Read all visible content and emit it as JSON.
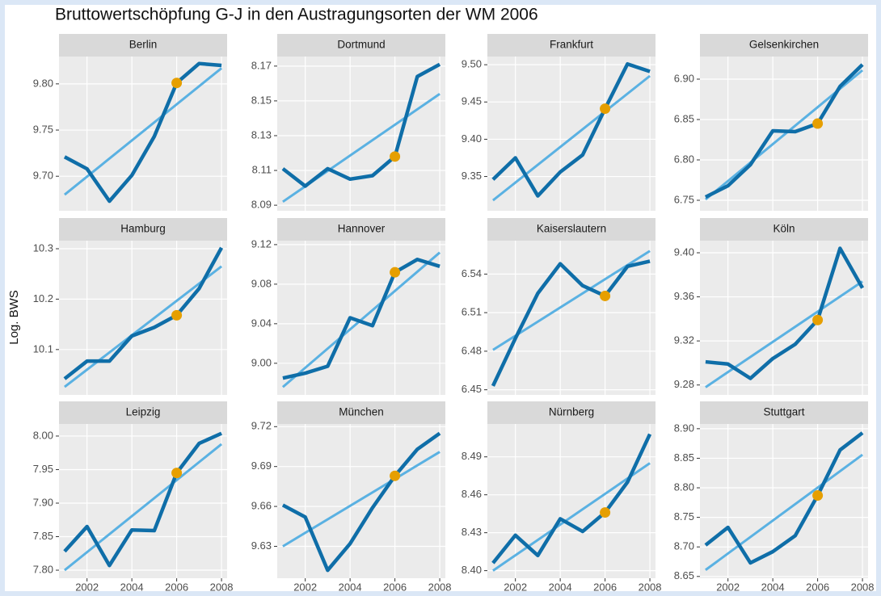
{
  "title": "Bruttowertschöpfung G-J in den Austragungsorten der WM 2006",
  "y_label": "Log. BWS",
  "chart_data": [
    {
      "type": "line",
      "title": "Berlin",
      "x": [
        2001,
        2002,
        2003,
        2004,
        2005,
        2006,
        2007,
        2008
      ],
      "xlim": [
        2000.75,
        2008.25
      ],
      "xticks": [
        2002,
        2004,
        2006,
        2008
      ],
      "ylim": [
        9.6626,
        9.8296
      ],
      "yticks": [
        {
          "value": 9.8,
          "label": "9.80"
        },
        9.75,
        {
          "value": 9.7,
          "label": "9.70"
        }
      ],
      "grid": true,
      "series": [
        {
          "color": "#0f6ea8",
          "values": [
            9.721,
            9.708,
            9.673,
            9.701,
            9.743,
            9.801,
            9.822,
            9.82
          ]
        },
        {
          "color": "#5ab1e2",
          "x": [
            2001,
            2008
          ],
          "values": [
            9.68,
            9.817
          ]
        }
      ],
      "points": {
        "color": "#e69f00",
        "x": [
          2006
        ],
        "values": [
          9.801
        ]
      }
    },
    {
      "type": "line",
      "title": "Dortmund",
      "x": [
        2001,
        2002,
        2003,
        2004,
        2005,
        2006,
        2007,
        2008
      ],
      "xlim": [
        2000.75,
        2008.25
      ],
      "xticks": [
        2002,
        2004,
        2006,
        2008
      ],
      "ylim": [
        8.0868,
        8.1755
      ],
      "yticks": [
        8.17,
        8.15,
        8.13,
        8.11,
        8.09
      ],
      "grid": true,
      "series": [
        {
          "color": "#0f6ea8",
          "values": [
            8.111,
            8.101,
            8.111,
            8.105,
            8.107,
            8.118,
            8.164,
            8.171
          ]
        },
        {
          "color": "#5ab1e2",
          "x": [
            2001,
            2008
          ],
          "values": [
            8.092,
            8.154
          ]
        }
      ],
      "points": {
        "color": "#e69f00",
        "x": [
          2006
        ],
        "values": [
          8.118
        ]
      }
    },
    {
      "type": "line",
      "title": "Frankfurt",
      "x": [
        2001,
        2002,
        2003,
        2004,
        2005,
        2006,
        2007,
        2008
      ],
      "xlim": [
        2000.75,
        2008.25
      ],
      "xticks": [
        2002,
        2004,
        2006,
        2008
      ],
      "ylim": [
        9.304,
        9.511
      ],
      "yticks": [
        {
          "value": 9.5,
          "label": "9.50"
        },
        9.45,
        {
          "value": 9.4,
          "label": "9.40"
        },
        9.35
      ],
      "grid": true,
      "series": [
        {
          "color": "#0f6ea8",
          "values": [
            9.346,
            9.375,
            9.324,
            9.356,
            9.379,
            9.441,
            9.501,
            9.491
          ]
        },
        {
          "color": "#5ab1e2",
          "x": [
            2001,
            2008
          ],
          "values": [
            9.318,
            9.485
          ]
        }
      ],
      "points": {
        "color": "#e69f00",
        "x": [
          2006
        ],
        "values": [
          9.441
        ]
      }
    },
    {
      "type": "line",
      "title": "Gelsenkirchen",
      "x": [
        2001,
        2002,
        2003,
        2004,
        2005,
        2006,
        2007,
        2008
      ],
      "xlim": [
        2000.75,
        2008.25
      ],
      "xticks": [
        2002,
        2004,
        2006,
        2008
      ],
      "ylim": [
        6.737,
        6.928
      ],
      "yticks": [
        {
          "value": 6.9,
          "label": "6.90"
        },
        6.85,
        {
          "value": 6.8,
          "label": "6.80"
        },
        6.75
      ],
      "grid": true,
      "series": [
        {
          "color": "#0f6ea8",
          "values": [
            6.754,
            6.768,
            6.794,
            6.836,
            6.835,
            6.845,
            6.891,
            6.918
          ]
        },
        {
          "color": "#5ab1e2",
          "x": [
            2001,
            2008
          ],
          "values": [
            6.751,
            6.911
          ]
        }
      ],
      "points": {
        "color": "#e69f00",
        "x": [
          2006
        ],
        "values": [
          6.845
        ]
      }
    },
    {
      "type": "line",
      "title": "Hamburg",
      "x": [
        2001,
        2002,
        2003,
        2004,
        2005,
        2006,
        2007,
        2008
      ],
      "xlim": [
        2000.75,
        2008.25
      ],
      "xticks": [
        2002,
        2004,
        2006,
        2008
      ],
      "ylim": [
        10.01,
        10.316
      ],
      "yticks": [
        10.3,
        10.2,
        10.1
      ],
      "grid": true,
      "series": [
        {
          "color": "#0f6ea8",
          "values": [
            10.042,
            10.077,
            10.077,
            10.127,
            10.144,
            10.168,
            10.221,
            10.302
          ]
        },
        {
          "color": "#5ab1e2",
          "x": [
            2001,
            2008
          ],
          "values": [
            10.026,
            10.265
          ]
        }
      ],
      "points": {
        "color": "#e69f00",
        "x": [
          2006
        ],
        "values": [
          10.168
        ]
      }
    },
    {
      "type": "line",
      "title": "Hannover",
      "x": [
        2001,
        2002,
        2003,
        2004,
        2005,
        2006,
        2007,
        2008
      ],
      "xlim": [
        2000.75,
        2008.25
      ],
      "xticks": [
        2002,
        2004,
        2006,
        2008
      ],
      "ylim": [
        8.968,
        9.124
      ],
      "yticks": [
        9.12,
        9.08,
        9.04,
        {
          "value": 9.0,
          "label": "9.00"
        }
      ],
      "grid": true,
      "series": [
        {
          "color": "#0f6ea8",
          "values": [
            8.985,
            8.99,
            8.997,
            9.046,
            9.038,
            9.092,
            9.105,
            9.098
          ]
        },
        {
          "color": "#5ab1e2",
          "x": [
            2001,
            2008
          ],
          "values": [
            8.976,
            9.112
          ]
        }
      ],
      "points": {
        "color": "#e69f00",
        "x": [
          2006
        ],
        "values": [
          9.092
        ]
      }
    },
    {
      "type": "line",
      "title": "Kaiserslautern",
      "x": [
        2001,
        2002,
        2003,
        2004,
        2005,
        2006,
        2007,
        2008
      ],
      "xlim": [
        2000.75,
        2008.25
      ],
      "xticks": [
        2002,
        2004,
        2006,
        2008
      ],
      "ylim": [
        6.446,
        6.566
      ],
      "yticks": [
        6.54,
        6.51,
        6.48,
        6.45
      ],
      "grid": true,
      "series": [
        {
          "color": "#0f6ea8",
          "values": [
            6.453,
            6.49,
            6.525,
            6.548,
            6.531,
            6.523,
            6.546,
            6.55
          ]
        },
        {
          "color": "#5ab1e2",
          "x": [
            2001,
            2008
          ],
          "values": [
            6.481,
            6.558
          ]
        }
      ],
      "points": {
        "color": "#e69f00",
        "x": [
          2006
        ],
        "values": [
          6.523
        ]
      }
    },
    {
      "type": "line",
      "title": "Köln",
      "x": [
        2001,
        2002,
        2003,
        2004,
        2005,
        2006,
        2007,
        2008
      ],
      "xlim": [
        2000.75,
        2008.25
      ],
      "xticks": [
        2002,
        2004,
        2006,
        2008
      ],
      "ylim": [
        9.271,
        9.411
      ],
      "yticks": [
        {
          "value": 9.4,
          "label": "9.40"
        },
        9.36,
        9.32,
        9.28
      ],
      "grid": true,
      "series": [
        {
          "color": "#0f6ea8",
          "values": [
            9.301,
            9.299,
            9.286,
            9.304,
            9.317,
            9.339,
            9.404,
            9.368
          ]
        },
        {
          "color": "#5ab1e2",
          "x": [
            2001,
            2008
          ],
          "values": [
            9.278,
            9.374
          ]
        }
      ],
      "points": {
        "color": "#e69f00",
        "x": [
          2006
        ],
        "values": [
          9.339
        ]
      }
    },
    {
      "type": "line",
      "title": "Leipzig",
      "x": [
        2001,
        2002,
        2003,
        2004,
        2005,
        2006,
        2007,
        2008
      ],
      "xlim": [
        2000.75,
        2008.25
      ],
      "xticks": [
        2002,
        2004,
        2006,
        2008
      ],
      "ylim": [
        7.788,
        8.018
      ],
      "yticks": [
        {
          "value": 8.0,
          "label": "8.00"
        },
        7.95,
        {
          "value": 7.9,
          "label": "7.90"
        },
        7.85,
        {
          "value": 7.8,
          "label": "7.80"
        }
      ],
      "grid": true,
      "series": [
        {
          "color": "#0f6ea8",
          "values": [
            7.828,
            7.865,
            7.807,
            7.86,
            7.859,
            7.945,
            7.989,
            8.004
          ]
        },
        {
          "color": "#5ab1e2",
          "x": [
            2001,
            2008
          ],
          "values": [
            7.8,
            7.988
          ]
        }
      ],
      "points": {
        "color": "#e69f00",
        "x": [
          2006
        ],
        "values": [
          7.945
        ]
      }
    },
    {
      "type": "line",
      "title": "München",
      "x": [
        2001,
        2002,
        2003,
        2004,
        2005,
        2006,
        2007,
        2008
      ],
      "xlim": [
        2000.75,
        2008.25
      ],
      "xticks": [
        2002,
        2004,
        2006,
        2008
      ],
      "ylim": [
        9.606,
        9.722
      ],
      "yticks": [
        9.72,
        9.69,
        9.66,
        9.63
      ],
      "grid": true,
      "series": [
        {
          "color": "#0f6ea8",
          "values": [
            9.661,
            9.652,
            9.612,
            9.632,
            9.659,
            9.683,
            9.703,
            9.715
          ]
        },
        {
          "color": "#5ab1e2",
          "x": [
            2001,
            2008
          ],
          "values": [
            9.63,
            9.701
          ]
        }
      ],
      "points": {
        "color": "#e69f00",
        "x": [
          2006
        ],
        "values": [
          9.683
        ]
      }
    },
    {
      "type": "line",
      "title": "Nürnberg",
      "x": [
        2001,
        2002,
        2003,
        2004,
        2005,
        2006,
        2007,
        2008
      ],
      "xlim": [
        2000.75,
        2008.25
      ],
      "xticks": [
        2002,
        2004,
        2006,
        2008
      ],
      "ylim": [
        8.394,
        8.516
      ],
      "yticks": [
        8.49,
        8.46,
        8.43,
        {
          "value": 8.4,
          "label": "8.40"
        }
      ],
      "grid": true,
      "series": [
        {
          "color": "#0f6ea8",
          "values": [
            8.406,
            8.428,
            8.412,
            8.441,
            8.431,
            8.446,
            8.47,
            8.508
          ]
        },
        {
          "color": "#5ab1e2",
          "x": [
            2001,
            2008
          ],
          "values": [
            8.4,
            8.485
          ]
        }
      ],
      "points": {
        "color": "#e69f00",
        "x": [
          2006
        ],
        "values": [
          8.446
        ]
      }
    },
    {
      "type": "line",
      "title": "Stuttgart",
      "x": [
        2001,
        2002,
        2003,
        2004,
        2005,
        2006,
        2007,
        2008
      ],
      "xlim": [
        2000.75,
        2008.25
      ],
      "xticks": [
        2002,
        2004,
        2006,
        2008
      ],
      "ylim": [
        8.647,
        8.908
      ],
      "yticks": [
        {
          "value": 8.9,
          "label": "8.90"
        },
        8.85,
        {
          "value": 8.8,
          "label": "8.80"
        },
        8.75,
        {
          "value": 8.7,
          "label": "8.70"
        },
        8.65
      ],
      "grid": true,
      "series": [
        {
          "color": "#0f6ea8",
          "values": [
            8.703,
            8.733,
            8.673,
            8.692,
            8.719,
            8.787,
            8.864,
            8.893
          ]
        },
        {
          "color": "#5ab1e2",
          "x": [
            2001,
            2008
          ],
          "values": [
            8.661,
            8.856
          ]
        }
      ],
      "points": {
        "color": "#e69f00",
        "x": [
          2006
        ],
        "values": [
          8.787
        ]
      }
    }
  ]
}
